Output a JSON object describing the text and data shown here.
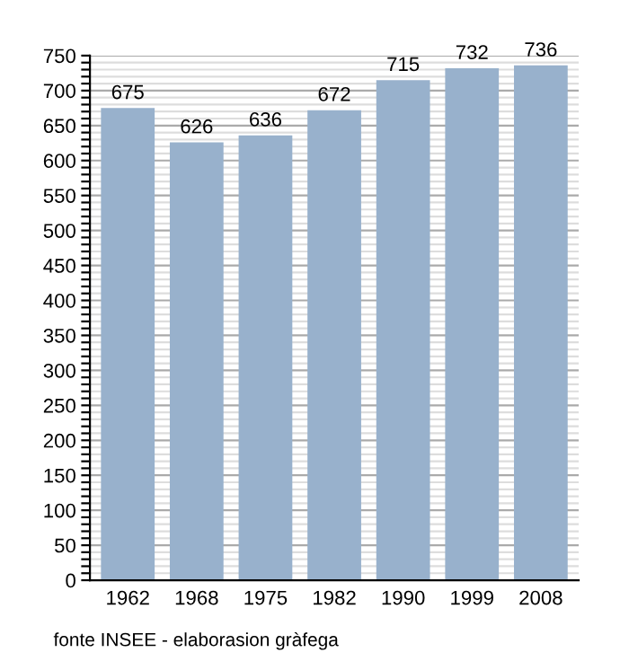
{
  "chart_data": {
    "type": "bar",
    "categories": [
      "1962",
      "1968",
      "1975",
      "1982",
      "1990",
      "1999",
      "2008"
    ],
    "values": [
      675,
      626,
      636,
      672,
      715,
      732,
      736
    ],
    "color": "#98b1cc",
    "data_labels": true,
    "ylim": [
      0,
      750
    ],
    "yticks": [
      0,
      {
        "value": 10,
        "label": null
      },
      {
        "value": 20,
        "label": null
      },
      {
        "value": 30,
        "label": null
      },
      {
        "value": 40,
        "label": null
      },
      50,
      {
        "value": 60,
        "label": null
      },
      {
        "value": 70,
        "label": null
      },
      {
        "value": 80,
        "label": null
      },
      {
        "value": 90,
        "label": null
      },
      100,
      {
        "value": 110,
        "label": null
      },
      {
        "value": 120,
        "label": null
      },
      {
        "value": 130,
        "label": null
      },
      {
        "value": 140,
        "label": null
      },
      150,
      {
        "value": 160,
        "label": null
      },
      {
        "value": 170,
        "label": null
      },
      {
        "value": 180,
        "label": null
      },
      {
        "value": 190,
        "label": null
      },
      200,
      {
        "value": 210,
        "label": null
      },
      {
        "value": 220,
        "label": null
      },
      {
        "value": 230,
        "label": null
      },
      {
        "value": 240,
        "label": null
      },
      250,
      {
        "value": 260,
        "label": null
      },
      {
        "value": 270,
        "label": null
      },
      {
        "value": 280,
        "label": null
      },
      {
        "value": 290,
        "label": null
      },
      300,
      {
        "value": 310,
        "label": null
      },
      {
        "value": 320,
        "label": null
      },
      {
        "value": 330,
        "label": null
      },
      {
        "value": 340,
        "label": null
      },
      350,
      {
        "value": 360,
        "label": null
      },
      {
        "value": 370,
        "label": null
      },
      {
        "value": 380,
        "label": null
      },
      {
        "value": 390,
        "label": null
      },
      400,
      {
        "value": 410,
        "label": null
      },
      {
        "value": 420,
        "label": null
      },
      {
        "value": 430,
        "label": null
      },
      {
        "value": 440,
        "label": null
      },
      450,
      {
        "value": 460,
        "label": null
      },
      {
        "value": 470,
        "label": null
      },
      {
        "value": 480,
        "label": null
      },
      {
        "value": 490,
        "label": null
      },
      500,
      {
        "value": 510,
        "label": null
      },
      {
        "value": 520,
        "label": null
      },
      {
        "value": 530,
        "label": null
      },
      {
        "value": 540,
        "label": null
      },
      550,
      {
        "value": 560,
        "label": null
      },
      {
        "value": 570,
        "label": null
      },
      {
        "value": 580,
        "label": null
      },
      {
        "value": 590,
        "label": null
      },
      600,
      {
        "value": 610,
        "label": null
      },
      {
        "value": 620,
        "label": null
      },
      {
        "value": 630,
        "label": null
      },
      {
        "value": 640,
        "label": null
      },
      650,
      {
        "value": 660,
        "label": null
      },
      {
        "value": 670,
        "label": null
      },
      {
        "value": 680,
        "label": null
      },
      {
        "value": 690,
        "label": null
      },
      700,
      {
        "value": 710,
        "label": null
      },
      {
        "value": 720,
        "label": null
      },
      {
        "value": 730,
        "label": null
      },
      {
        "value": 740,
        "label": null
      },
      750
    ],
    "grid": "y",
    "legend": false,
    "annotations": [
      "fonte INSEE - elaborasion gràfega"
    ]
  }
}
